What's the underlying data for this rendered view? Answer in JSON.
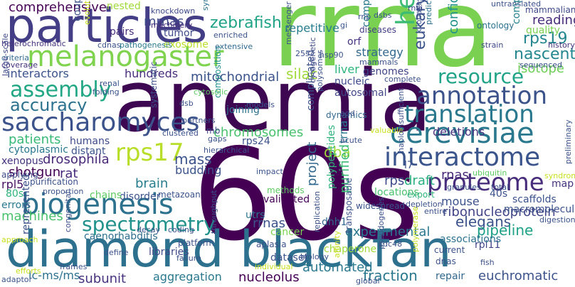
{
  "words": [
    {
      "text": "rrna",
      "color": "#7ad151"
    },
    {
      "text": "60s",
      "color": "#440154"
    },
    {
      "text": "anemia",
      "color": "#3e0751"
    },
    {
      "text": "diamond blackfan",
      "color": "#2d718e"
    },
    {
      "text": "particles",
      "color": "#433e85"
    },
    {
      "text": "melanogaster",
      "color": "#7fd34e"
    },
    {
      "text": "cerevisiae",
      "color": "#2a788e"
    },
    {
      "text": "saccharomyces",
      "color": "#3b528b"
    },
    {
      "text": "biogenesis",
      "color": "#2c728e"
    },
    {
      "text": "proteome",
      "color": "#472d7b"
    },
    {
      "text": "interactome",
      "color": "#3a548c"
    },
    {
      "text": "annotation",
      "color": "#3b528b"
    },
    {
      "text": "translation",
      "color": "#2a788e"
    },
    {
      "text": "resource",
      "color": "#20a386"
    },
    {
      "text": "assembly",
      "color": "#22a785"
    },
    {
      "text": "accuracy",
      "color": "#2c728e"
    },
    {
      "text": "rps17",
      "color": "#b8de29"
    },
    {
      "text": "spectrometry",
      "color": "#21918c"
    },
    {
      "text": "helicase",
      "color": "#3bbb75"
    },
    {
      "text": "mitochondrial",
      "color": "#3b528b"
    },
    {
      "text": "comprehensive",
      "color": "#440154"
    },
    {
      "text": "zebrafish",
      "color": "#20a386"
    },
    {
      "text": "mrnas",
      "color": "#3e4989"
    },
    {
      "text": "nested",
      "color": "#9fda3a"
    },
    {
      "text": "rps19",
      "color": "#24868e"
    },
    {
      "text": "nascent",
      "color": "#24868e"
    },
    {
      "text": "isotope",
      "color": "#6ece58"
    },
    {
      "text": "reading",
      "color": "#472c7a"
    },
    {
      "text": "quality",
      "color": "#7ad151"
    },
    {
      "text": "mammalian",
      "color": "#3e4989"
    },
    {
      "text": "eukaryotic",
      "color": "#3b528b"
    },
    {
      "text": "confidence",
      "color": "#21918c"
    },
    {
      "text": "complementary",
      "color": "#26828e"
    },
    {
      "text": "repetitive",
      "color": "#287d8e"
    },
    {
      "text": "strategy",
      "color": "#31688e"
    },
    {
      "text": "orf",
      "color": "#46327e"
    },
    {
      "text": "interactors",
      "color": "#3b528b"
    },
    {
      "text": "hundreds",
      "color": "#472d7b"
    },
    {
      "text": "silac",
      "color": "#9fda3a"
    },
    {
      "text": "liver",
      "color": "#2fb47c"
    },
    {
      "text": "genomes",
      "color": "#404588"
    },
    {
      "text": "nucleic",
      "color": "#3e4989"
    },
    {
      "text": "autosomal",
      "color": "#414487"
    },
    {
      "text": "chromosomes",
      "color": "#4ac16d"
    },
    {
      "text": "patients",
      "color": "#38b977"
    },
    {
      "text": "humans",
      "color": "#3e4989"
    },
    {
      "text": "distant",
      "color": "#3b528b"
    },
    {
      "text": "cytoplasmic",
      "color": "#2a788e"
    },
    {
      "text": "xenopus",
      "color": "#46327e"
    },
    {
      "text": "drosophila",
      "color": "#482878"
    },
    {
      "text": "mass",
      "color": "#3b528b"
    },
    {
      "text": "dba",
      "color": "#a0da39"
    },
    {
      "text": "rps",
      "color": "#3e4989"
    },
    {
      "text": "draft",
      "color": "#29af7f"
    },
    {
      "text": "rnas",
      "color": "#482878"
    },
    {
      "text": "deletions",
      "color": "#46327e"
    },
    {
      "text": "rps24",
      "color": "#3b528b"
    },
    {
      "text": "shotgun",
      "color": "#440154"
    },
    {
      "text": "rat",
      "color": "#472a7a"
    },
    {
      "text": "brain",
      "color": "#287d8e"
    },
    {
      "text": "budding",
      "color": "#3b528b"
    },
    {
      "text": "rpl5",
      "color": "#471164"
    },
    {
      "text": "purification",
      "color": "#3b528b"
    },
    {
      "text": "80s",
      "color": "#2fb47c"
    },
    {
      "text": "errors",
      "color": "#2a788e"
    },
    {
      "text": "machines",
      "color": "#4ac16d"
    },
    {
      "text": "caenorhabditis",
      "color": "#2e6e8e"
    },
    {
      "text": "ribonucleoprotein",
      "color": "#414487"
    },
    {
      "text": "elegans",
      "color": "#3b528b"
    },
    {
      "text": "mouse",
      "color": "#3b528b"
    },
    {
      "text": "pipeline",
      "color": "#1fa187"
    },
    {
      "text": "experimental",
      "color": "#2a788e"
    },
    {
      "text": "rrnas",
      "color": "#3b528b"
    },
    {
      "text": "cancer",
      "color": "#7ad151"
    },
    {
      "text": "utrs",
      "color": "#2c728e"
    },
    {
      "text": "subunit",
      "color": "#46327e"
    },
    {
      "text": "aggregation",
      "color": "#2a788e"
    },
    {
      "text": "nucleolus",
      "color": "#440154"
    },
    {
      "text": "automated",
      "color": "#2a788e"
    },
    {
      "text": "fraction",
      "color": "#2a788e"
    },
    {
      "text": "repair",
      "color": "#31688e"
    },
    {
      "text": "euchromatic",
      "color": "#3b528b"
    },
    {
      "text": "lc-ms/ms",
      "color": "#2c728e"
    },
    {
      "text": "rpl11",
      "color": "#404588"
    },
    {
      "text": "project",
      "color": "#31688e"
    },
    {
      "text": "purified",
      "color": "#3bbb75"
    },
    {
      "text": "trna",
      "color": "#2a788e"
    },
    {
      "text": "dhh1",
      "color": "#31688e"
    },
    {
      "text": "polypeptides",
      "color": "#2fb47c"
    },
    {
      "text": "validated",
      "color": "#440154"
    },
    {
      "text": "complicated",
      "color": "#3b528b"
    },
    {
      "text": "computational",
      "color": "#2a788e"
    },
    {
      "text": "map",
      "color": "#46327e"
    },
    {
      "text": "scaffolds",
      "color": "#3b528b"
    },
    {
      "text": "40s",
      "color": "#3b528b"
    },
    {
      "text": "diseases",
      "color": "#433e85"
    },
    {
      "text": "ontology",
      "color": "#2c728e"
    },
    {
      "text": "tumor",
      "color": "#3e4989"
    },
    {
      "text": "pairs",
      "color": "#472d7b"
    },
    {
      "text": "coupled",
      "color": "#3b528b"
    },
    {
      "text": "chaperone",
      "color": "#9fda3a"
    },
    {
      "text": "dataset",
      "color": "#3b528b"
    },
    {
      "text": "libraries",
      "color": "#3e4989"
    },
    {
      "text": "metazoan",
      "color": "#3b528b"
    },
    {
      "text": "methods",
      "color": "#5ec962"
    },
    {
      "text": "disorder",
      "color": "#3b528b"
    },
    {
      "text": "chains",
      "color": "#5ec962"
    },
    {
      "text": "applying",
      "color": "#3e4989"
    },
    {
      "text": "locations",
      "color": "#4ac16d"
    },
    {
      "text": "export",
      "color": "#2fb47c"
    },
    {
      "text": "associations",
      "color": "#2c728e"
    },
    {
      "text": "macromolecular",
      "color": "#3b528b"
    },
    {
      "text": "joining",
      "color": "#2c728e"
    },
    {
      "text": "composition",
      "color": "#21918c"
    },
    {
      "text": "systematic",
      "color": "#3b528b"
    },
    {
      "text": "represented",
      "color": "#3b528b"
    },
    {
      "text": "mb",
      "color": "#3e4989"
    },
    {
      "text": "dynamics",
      "color": "#31688e"
    },
    {
      "text": "l7",
      "color": "#3b528b"
    },
    {
      "text": "machinery",
      "color": "#472d7b"
    },
    {
      "text": "knockdown",
      "color": "#3e4989"
    },
    {
      "text": "enriched",
      "color": "#3b528b"
    },
    {
      "text": "synthesis",
      "color": "#2c728e"
    },
    {
      "text": "exosome",
      "color": "#b8de29"
    },
    {
      "text": "extensive",
      "color": "#31688e"
    },
    {
      "text": "dsbs",
      "color": "#3b528b"
    },
    {
      "text": "rnai",
      "color": "#3e4989"
    },
    {
      "text": "rnp",
      "color": "#3b528b"
    },
    {
      "text": "gi",
      "color": "#3b528b"
    },
    {
      "text": "untranslated",
      "color": "#3b528b"
    },
    {
      "text": "heterochromatic",
      "color": "#46327e"
    },
    {
      "text": "criteria",
      "color": "#31688e"
    },
    {
      "text": "coverage",
      "color": "#46327e"
    },
    {
      "text": "evolutionary",
      "color": "#c8e020"
    },
    {
      "text": "cdnas",
      "color": "#3b528b"
    },
    {
      "text": "pathogenesis",
      "color": "#2a788e"
    },
    {
      "text": "models",
      "color": "#3b528b"
    },
    {
      "text": "messenger",
      "color": "#3b528b"
    },
    {
      "text": "25s",
      "color": "#3b528b"
    },
    {
      "text": "hsp90",
      "color": "#3b528b"
    },
    {
      "text": "kilobases",
      "color": "#3b528b"
    },
    {
      "text": "prediction",
      "color": "#2c728e"
    },
    {
      "text": "strain",
      "color": "#3e4989"
    },
    {
      "text": "history",
      "color": "#46327e"
    },
    {
      "text": "sequenced",
      "color": "#3b528b"
    },
    {
      "text": "mammals",
      "color": "#3b528b"
    },
    {
      "text": "complete",
      "color": "#3b528b"
    },
    {
      "text": "renal",
      "color": "#3b528b"
    },
    {
      "text": "cytosolic",
      "color": "#5ec962"
    },
    {
      "text": "large-scale",
      "color": "#3e4989"
    },
    {
      "text": "folding",
      "color": "#3b528b"
    },
    {
      "text": "dsb",
      "color": "#3b528b"
    },
    {
      "text": "partners",
      "color": "#3b528b"
    },
    {
      "text": "cytogenetic",
      "color": "#3e4989"
    },
    {
      "text": "polysomes",
      "color": "#3b528b"
    },
    {
      "text": "add",
      "color": "#3b528b"
    },
    {
      "text": "clustered",
      "color": "#3b528b"
    },
    {
      "text": "gaps",
      "color": "#3b528b"
    },
    {
      "text": "hierarchical",
      "color": "#3b528b"
    },
    {
      "text": "acute",
      "color": "#3b528b"
    },
    {
      "text": "valuable",
      "color": "#c8e020"
    },
    {
      "text": "ubiquitin",
      "color": "#5ec962"
    },
    {
      "text": "syndrome",
      "color": "#c8e020"
    },
    {
      "text": "preliminary",
      "color": "#3b528b"
    },
    {
      "text": "haploinsufficient",
      "color": "#3b528b"
    },
    {
      "text": "widespread",
      "color": "#3b528b"
    },
    {
      "text": "depletion",
      "color": "#3b528b"
    },
    {
      "text": "entire",
      "color": "#3b528b"
    },
    {
      "text": "granules",
      "color": "#3b528b"
    },
    {
      "text": "total",
      "color": "#3b528b"
    },
    {
      "text": "digestion",
      "color": "#3b528b"
    },
    {
      "text": "proportion",
      "color": "#3b528b"
    },
    {
      "text": "impact",
      "color": "#3b528b"
    },
    {
      "text": "decay",
      "color": "#3b528b"
    },
    {
      "text": "coding",
      "color": "#3b528b"
    },
    {
      "text": "platform",
      "color": "#3b528b"
    },
    {
      "text": "aplasia",
      "color": "#3b528b"
    },
    {
      "text": "cdc48",
      "color": "#3b528b"
    },
    {
      "text": "define",
      "color": "#3b528b"
    },
    {
      "text": "failure",
      "color": "#3b528b"
    },
    {
      "text": "approach",
      "color": "#c8e020"
    },
    {
      "text": "biology",
      "color": "#3b528b"
    },
    {
      "text": "congenital",
      "color": "#3b528b"
    },
    {
      "text": "frames",
      "color": "#3b528b"
    },
    {
      "text": "throughput",
      "color": "#3b528b"
    },
    {
      "text": "individual",
      "color": "#c8e020"
    },
    {
      "text": "replication",
      "color": "#3b528b"
    },
    {
      "text": "transposable",
      "color": "#3b528b"
    },
    {
      "text": "affinity",
      "color": "#c8e020"
    },
    {
      "text": "pseudogenes",
      "color": "#3b528b"
    },
    {
      "text": "polymerase",
      "color": "#c8e020"
    },
    {
      "text": "current",
      "color": "#3b528b"
    },
    {
      "text": "dnas",
      "color": "#3b528b"
    },
    {
      "text": "fish",
      "color": "#3b528b"
    },
    {
      "text": "global",
      "color": "#3b528b"
    },
    {
      "text": "adaptor",
      "color": "#3b528b"
    },
    {
      "text": "efforts",
      "color": "#c8e020"
    }
  ]
}
